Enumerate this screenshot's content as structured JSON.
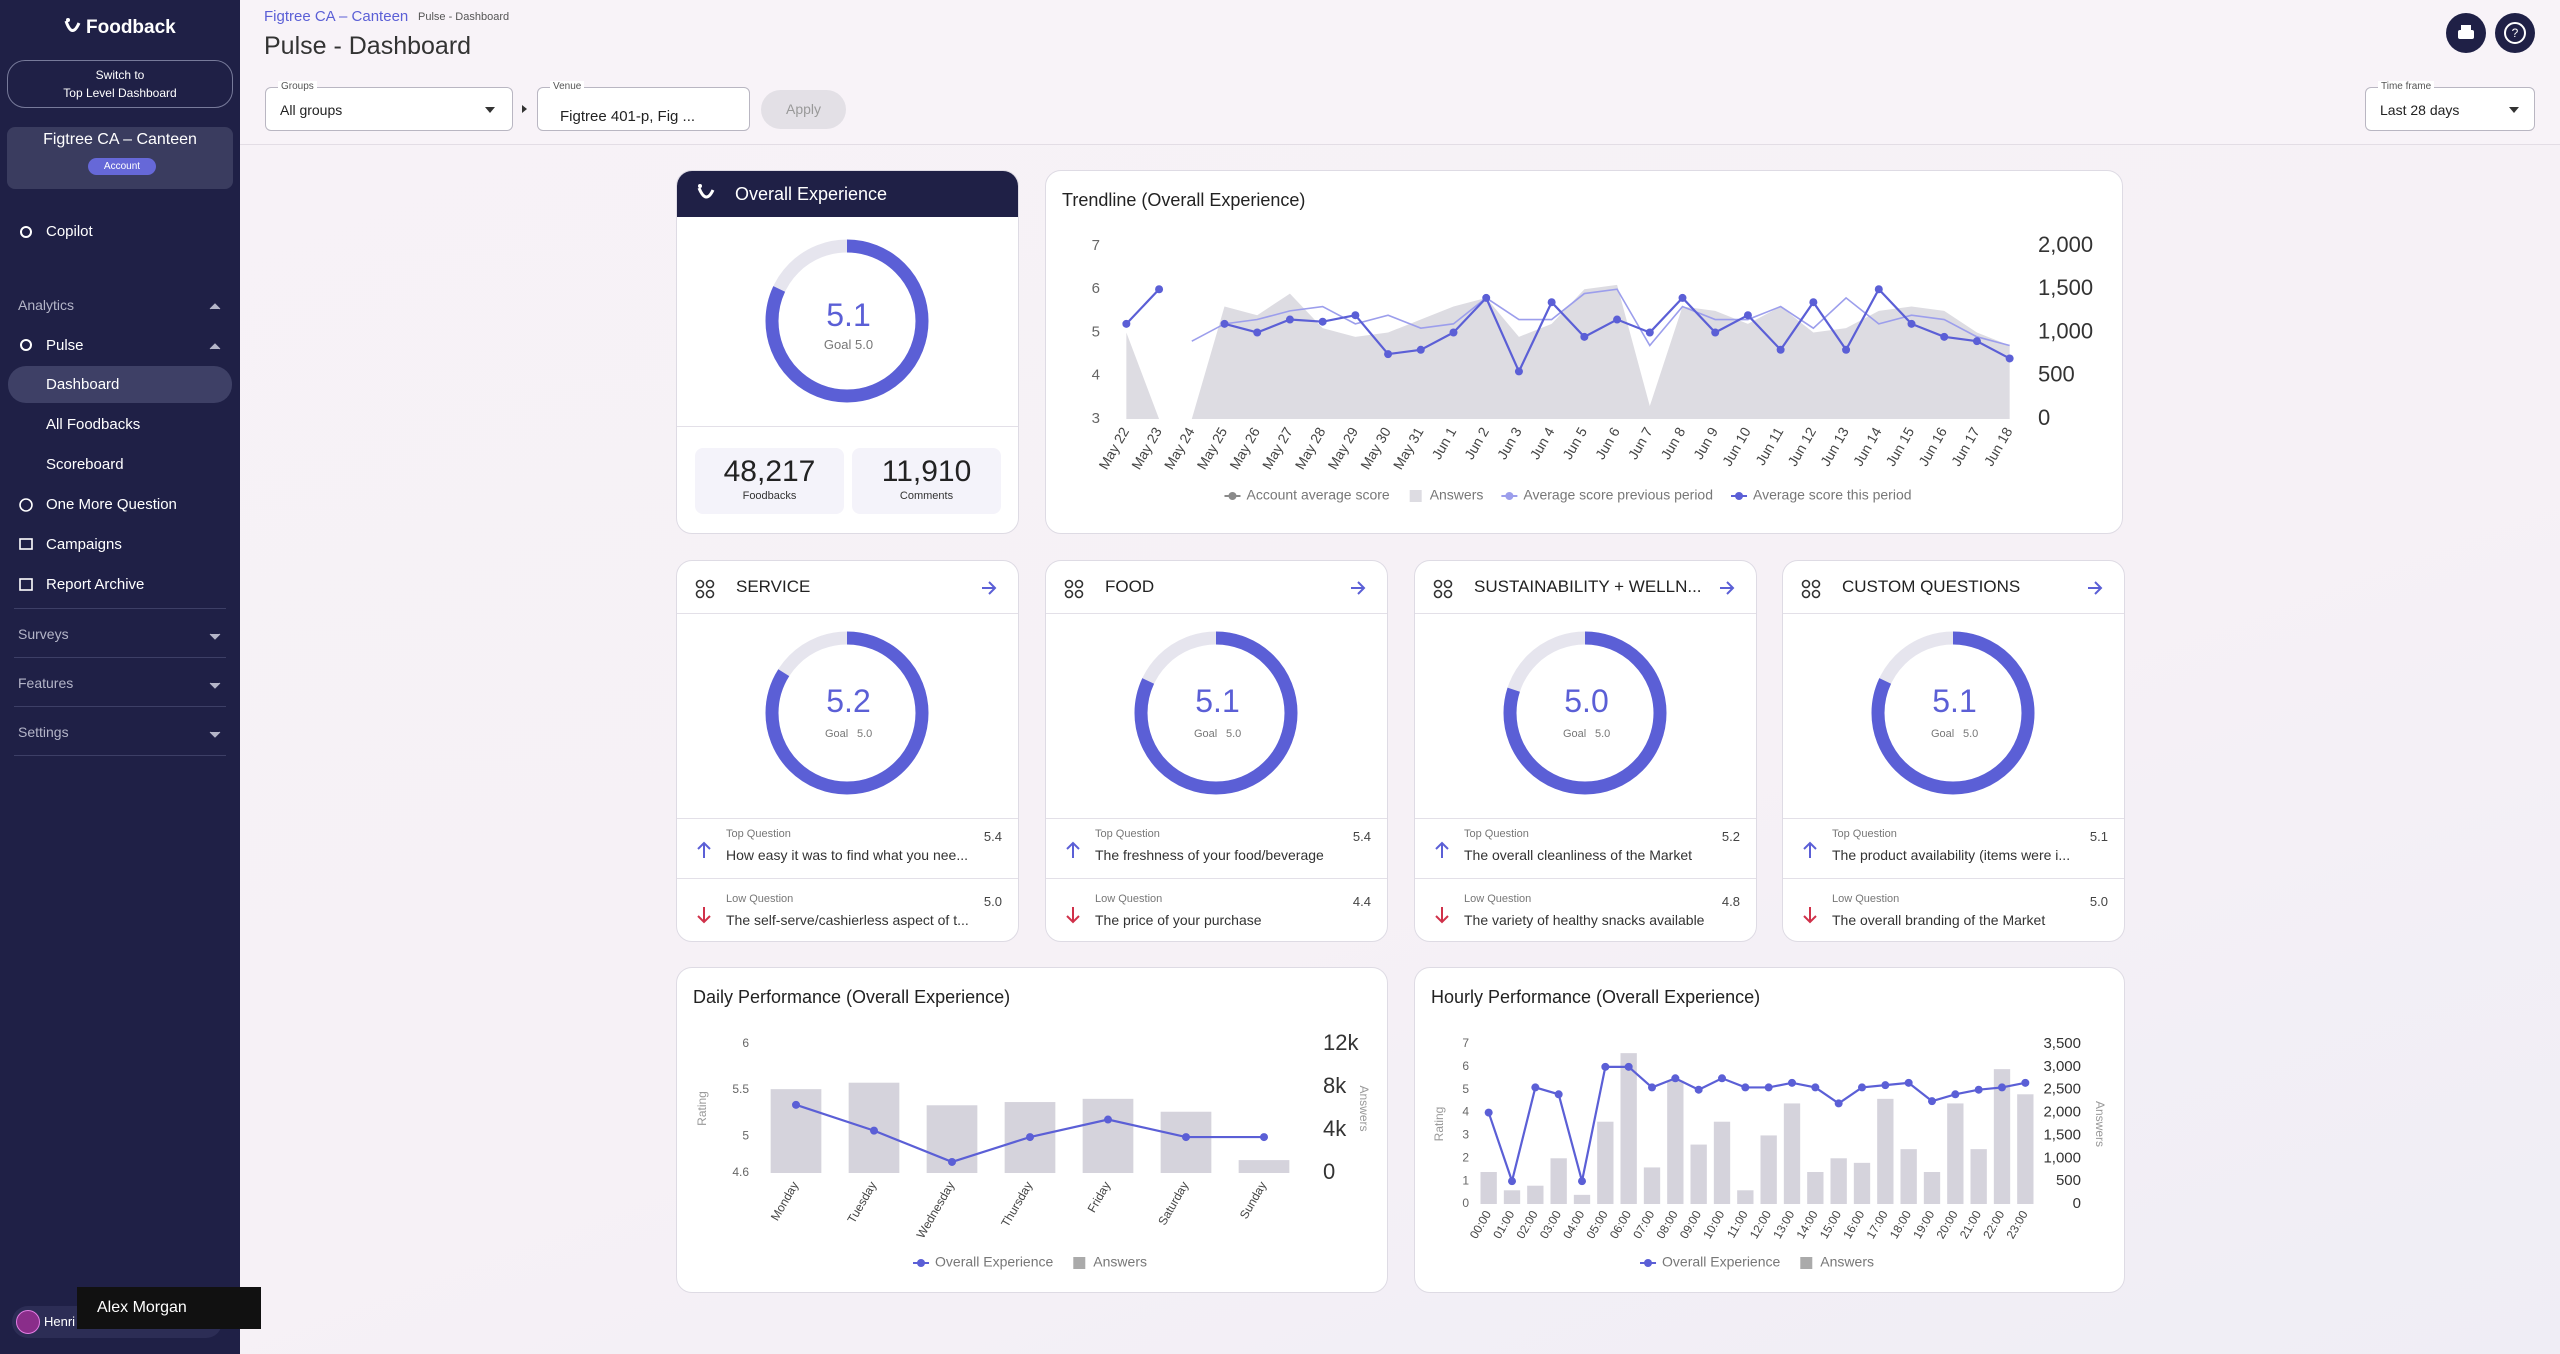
{
  "sidebar": {
    "brand": "Foodback",
    "switch": [
      "Switch to",
      "Top Level Dashboard"
    ],
    "account_name": "Figtree CA – Canteen",
    "account_badge": "Account",
    "nav": {
      "copilot": "Copilot",
      "analytics": "Analytics",
      "pulse": "Pulse",
      "dashboard": "Dashboard",
      "all_foodbacks": "All Foodbacks",
      "scoreboard": "Scoreboard",
      "one_more_question": "One More Question",
      "campaigns": "Campaigns",
      "report_archive": "Report Archive",
      "surveys": "Surveys",
      "features": "Features",
      "settings": "Settings"
    },
    "user": "Henri",
    "tooltip": "Alex Morgan"
  },
  "header": {
    "breadcrumb": [
      "Figtree CA – Canteen",
      "Pulse - Dashboard"
    ],
    "title": "Pulse - Dashboard"
  },
  "filters": {
    "groups": {
      "label": "Groups",
      "value": "All groups"
    },
    "venue": {
      "label": "Venue",
      "value": "Figtree 401-p, Fig ..."
    },
    "apply": "Apply",
    "timeframe": {
      "label": "Time frame",
      "value": "Last 28 days"
    }
  },
  "gauge": {
    "range": [
      1,
      6
    ]
  },
  "overall": {
    "title": "Overall Experience",
    "score": {
      "value": 5.1,
      "label": "5.1"
    },
    "goal": "Goal 5.0",
    "stats": [
      {
        "value": "48,217",
        "label": "Foodbacks"
      },
      {
        "value": "11,910",
        "label": "Comments"
      }
    ]
  },
  "trendline": {
    "title": "Trendline (Overall Experience)",
    "categories": [
      "May 22",
      "May 23",
      "May 24",
      "May 25",
      "May 26",
      "May 27",
      "May 28",
      "May 29",
      "May 30",
      "May 31",
      "Jun 1",
      "Jun 2",
      "Jun 3",
      "Jun 4",
      "Jun 5",
      "Jun 6",
      "Jun 7",
      "Jun 8",
      "Jun 9",
      "Jun 10",
      "Jun 11",
      "Jun 12",
      "Jun 13",
      "Jun 14",
      "Jun 15",
      "Jun 16",
      "Jun 17",
      "Jun 18"
    ],
    "ylim": [
      3,
      7
    ],
    "yticks": [
      3,
      4,
      5,
      6,
      7
    ],
    "y2lim": [
      0,
      2000
    ],
    "y2ticks": [
      0,
      500,
      {
        "value": 1000,
        "label": "1,000"
      },
      {
        "value": 1500,
        "label": "1,500"
      },
      {
        "value": 2000,
        "label": "2,000"
      }
    ],
    "series": [
      {
        "name": "Account average score",
        "type": "line",
        "color": "#8a8a8a",
        "values": [
          null,
          null,
          null,
          null,
          null,
          null,
          null,
          null,
          null,
          null,
          null,
          null,
          null,
          null,
          null,
          null,
          null,
          null,
          null,
          null,
          null,
          null,
          null,
          null,
          null,
          null,
          null,
          null
        ]
      },
      {
        "name": "Answers",
        "type": "area",
        "axis": "y2",
        "color": "#dddce2",
        "values": [
          1000,
          0,
          0,
          1300,
          1200,
          1450,
          1050,
          950,
          1000,
          1150,
          1300,
          1400,
          950,
          1100,
          1500,
          1550,
          150,
          1300,
          1250,
          1100,
          1300,
          1000,
          1050,
          1250,
          1300,
          1250,
          1000,
          850
        ]
      },
      {
        "name": "Average score previous period",
        "type": "line",
        "color": "#9c9eec",
        "values": [
          null,
          null,
          4.8,
          5.2,
          5.3,
          5.5,
          5.6,
          5.2,
          5.4,
          5.1,
          5.2,
          5.8,
          5.3,
          5.3,
          5.9,
          6.0,
          4.7,
          5.6,
          5.3,
          5.3,
          5.6,
          5.1,
          5.8,
          5.2,
          5.4,
          5.3,
          4.9,
          4.7
        ]
      },
      {
        "name": "Average score this period",
        "type": "line",
        "markers": true,
        "color": "#5b5fd6",
        "values": [
          5.2,
          6.0,
          null,
          5.2,
          5.0,
          5.3,
          5.25,
          5.4,
          4.5,
          4.6,
          5.0,
          5.8,
          4.1,
          5.7,
          4.9,
          5.3,
          5.0,
          5.8,
          5.0,
          5.4,
          4.6,
          5.7,
          4.6,
          6.0,
          5.2,
          4.9,
          4.8,
          4.4
        ]
      }
    ]
  },
  "category_cards": [
    {
      "title": "SERVICE",
      "score": {
        "value": 5.2,
        "label": "5.2"
      },
      "goal_label": "Goal",
      "goal": "5.0",
      "top": {
        "label": "Top Question",
        "text": "How easy it was to find what you nee...",
        "score": "5.4"
      },
      "low": {
        "label": "Low Question",
        "text": "The self-serve/cashierless aspect of t...",
        "score": "5.0"
      }
    },
    {
      "title": "FOOD",
      "score": {
        "value": 5.1,
        "label": "5.1"
      },
      "goal_label": "Goal",
      "goal": "5.0",
      "top": {
        "label": "Top Question",
        "text": "The freshness of your food/beverage",
        "score": "5.4"
      },
      "low": {
        "label": "Low Question",
        "text": "The price of your purchase",
        "score": "4.4"
      }
    },
    {
      "title": "SUSTAINABILITY + WELLN...",
      "score": {
        "value": 5.0,
        "label": "5.0"
      },
      "goal_label": "Goal",
      "goal": "5.0",
      "top": {
        "label": "Top Question",
        "text": "The overall cleanliness of the Market",
        "score": "5.2"
      },
      "low": {
        "label": "Low Question",
        "text": "The variety of healthy snacks available",
        "score": "4.8"
      }
    },
    {
      "title": "CUSTOM QUESTIONS",
      "score": {
        "value": 5.1,
        "label": "5.1"
      },
      "goal_label": "Goal",
      "goal": "5.0",
      "top": {
        "label": "Top Question",
        "text": "The product availability (items were i...",
        "score": "5.1"
      },
      "low": {
        "label": "Low Question",
        "text": "The overall branding of the Market",
        "score": "5.0"
      }
    }
  ],
  "daily": {
    "title": "Daily Performance (Overall Experience)",
    "ylabel": "Rating",
    "y2label": "Answers",
    "categories": [
      "Monday",
      "Tuesday",
      "Wednesday",
      "Thursday",
      "Friday",
      "Saturday",
      "Sunday"
    ],
    "ylim": [
      4.6,
      6
    ],
    "yticks": [
      4.6,
      5,
      5.5,
      6
    ],
    "y2lim": [
      0,
      12000
    ],
    "y2ticks": [
      0,
      {
        "value": 4000,
        "label": "4k"
      },
      {
        "value": 8000,
        "label": "8k"
      },
      {
        "value": 12000,
        "label": "12k"
      }
    ],
    "series": [
      {
        "name": "Overall Experience",
        "type": "line",
        "markers": true,
        "color": "#5b5fd6",
        "values": [
          5.34,
          5.06,
          4.72,
          4.99,
          5.18,
          4.99,
          4.99
        ]
      },
      {
        "name": "Answers",
        "type": "bar",
        "axis": "y2",
        "color": "#d5d3dc",
        "values": [
          7800,
          8400,
          6300,
          6600,
          6900,
          5700,
          1200
        ]
      }
    ]
  },
  "hourly": {
    "title": "Hourly Performance (Overall Experience)",
    "ylabel": "Rating",
    "y2label": "Answers",
    "categories": [
      "00:00",
      "01:00",
      "02:00",
      "03:00",
      "04:00",
      "05:00",
      "06:00",
      "07:00",
      "08:00",
      "09:00",
      "10:00",
      "11:00",
      "12:00",
      "13:00",
      "14:00",
      "15:00",
      "16:00",
      "17:00",
      "18:00",
      "19:00",
      "20:00",
      "21:00",
      "22:00",
      "23:00"
    ],
    "ylim": [
      0,
      7
    ],
    "yticks": [
      0,
      1,
      2,
      3,
      4,
      5,
      6,
      7
    ],
    "y2lim": [
      0,
      3500
    ],
    "y2ticks": [
      0,
      500,
      {
        "value": 1000,
        "label": "1,000"
      },
      {
        "value": 1500,
        "label": "1,500"
      },
      {
        "value": 2000,
        "label": "2,000"
      },
      {
        "value": 2500,
        "label": "2,500"
      },
      {
        "value": 3000,
        "label": "3,000"
      },
      {
        "value": 3500,
        "label": "3,500"
      }
    ],
    "series": [
      {
        "name": "Overall Experience",
        "type": "line",
        "markers": true,
        "color": "#5b5fd6",
        "values": [
          4.0,
          1.0,
          5.1,
          4.8,
          1.0,
          6.0,
          6.0,
          5.1,
          5.5,
          5.0,
          5.5,
          5.1,
          5.1,
          5.3,
          5.1,
          4.4,
          5.1,
          5.2,
          5.3,
          4.5,
          4.8,
          5.0,
          5.1,
          5.3
        ]
      },
      {
        "name": "Answers",
        "type": "bar",
        "axis": "y2",
        "color": "#d5d3dc",
        "values": [
          700,
          300,
          400,
          1000,
          200,
          1800,
          3300,
          800,
          2700,
          1300,
          1800,
          300,
          1500,
          2200,
          700,
          1000,
          900,
          2300,
          1200,
          700,
          2200,
          1200,
          2950,
          2400
        ]
      }
    ]
  }
}
